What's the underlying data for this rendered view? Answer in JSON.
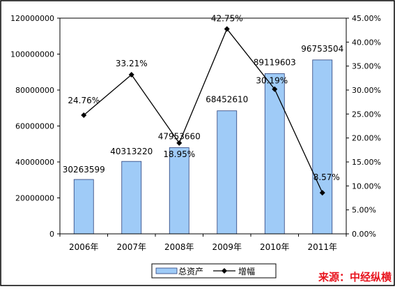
{
  "chart_data": {
    "type": "bar+line",
    "categories": [
      "2006年",
      "2007年",
      "2008年",
      "2009年",
      "2010年",
      "2011年"
    ],
    "series": [
      {
        "name": "总资产",
        "type": "bar",
        "axis": "left",
        "values": [
          30263599,
          40313220,
          47953660,
          68452610,
          89119603,
          96753504
        ],
        "labels": [
          "30263599",
          "40313220",
          "47953660",
          "68452610",
          "89119603",
          "96753504"
        ],
        "color": "#9fcbf7"
      },
      {
        "name": "增幅",
        "type": "line",
        "axis": "right",
        "values": [
          24.76,
          33.21,
          18.95,
          42.75,
          30.19,
          8.57
        ],
        "labels": [
          "24.76%",
          "33.21%",
          "18.95%",
          "42.75%",
          "30.19%",
          "8.57%"
        ],
        "color": "#000000"
      }
    ],
    "y_left": {
      "min": 0,
      "max": 120000000,
      "ticks": [
        "0",
        "20000000",
        "40000000",
        "60000000",
        "80000000",
        "100000000",
        "120000000"
      ]
    },
    "y_right": {
      "min": 0,
      "max": 45,
      "ticks": [
        "0.00%",
        "5.00%",
        "10.00%",
        "15.00%",
        "20.00%",
        "25.00%",
        "30.00%",
        "35.00%",
        "40.00%",
        "45.00%"
      ]
    },
    "grid": false,
    "legend": "bottom",
    "source": "来源：中经纵横"
  },
  "colors": {
    "frame": "#000000",
    "bar_fill": "#9fcbf7",
    "bar_stroke": "#2a3f7a",
    "line": "#000000",
    "source": "#e8141e"
  }
}
